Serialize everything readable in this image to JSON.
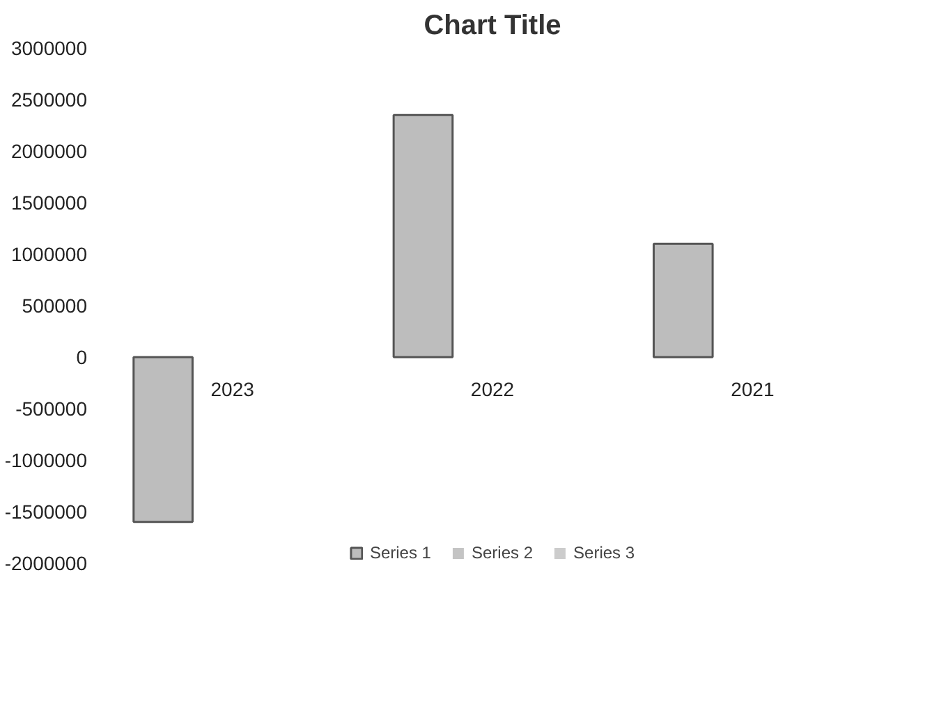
{
  "chart_data": {
    "type": "bar",
    "title": "Chart Title",
    "categories": [
      "2023",
      "2022",
      "2021"
    ],
    "series": [
      {
        "name": "Series 1",
        "color": "#bdbdbd",
        "values": [
          -1600000,
          2350000,
          1100000
        ]
      },
      {
        "name": "Series 2",
        "color": "#c4c4c4",
        "values": [
          null,
          null,
          null
        ]
      },
      {
        "name": "Series 3",
        "color": "#cccccc",
        "values": [
          null,
          null,
          null
        ]
      }
    ],
    "ylim": [
      -2000000,
      3000000
    ],
    "yticks": [
      -2000000,
      -1500000,
      -1000000,
      -500000,
      0,
      500000,
      1000000,
      1500000,
      2000000,
      2500000,
      3000000
    ],
    "grid": false,
    "legend": "bottom"
  }
}
